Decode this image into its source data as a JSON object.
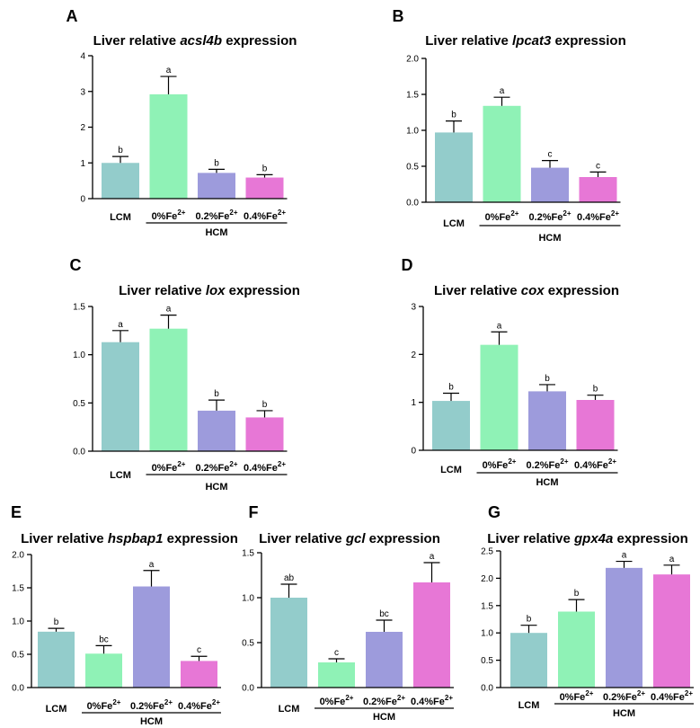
{
  "figure": {
    "colors": [
      "#93cccb",
      "#8ff2b6",
      "#9d9bdc",
      "#e777d6"
    ],
    "group_label": "HCM",
    "iron_prefixes": [
      "0%Fe",
      "0.2%Fe",
      "0.4%Fe"
    ],
    "iron_sup": "2+"
  },
  "chart_data": [
    {
      "type": "bar",
      "panel": "A",
      "title_prefix": "Liver relative ",
      "gene": "acsl4b",
      "title_suffix": " expression",
      "categories": [
        "LCM",
        "0%Fe2+",
        "0.2%Fe2+",
        "0.4%Fe2+"
      ],
      "values": [
        1.0,
        2.92,
        0.72,
        0.59
      ],
      "errors": [
        0.18,
        0.5,
        0.1,
        0.08
      ],
      "letters": [
        "b",
        "a",
        "b",
        "b"
      ],
      "ylim": [
        0,
        4
      ],
      "yticks": [
        0,
        1,
        2,
        3,
        4
      ],
      "ytick_labels": [
        "0",
        "1",
        "2",
        "3",
        "4"
      ]
    },
    {
      "type": "bar",
      "panel": "B",
      "title_prefix": "Liver relative ",
      "gene": "lpcat3",
      "title_suffix": " expression",
      "categories": [
        "LCM",
        "0%Fe2+",
        "0.2%Fe2+",
        "0.4%Fe2+"
      ],
      "values": [
        0.97,
        1.34,
        0.48,
        0.35
      ],
      "errors": [
        0.16,
        0.12,
        0.1,
        0.07
      ],
      "letters": [
        "b",
        "a",
        "c",
        "c"
      ],
      "ylim": [
        0,
        2
      ],
      "yticks": [
        0,
        0.5,
        1,
        1.5,
        2
      ],
      "ytick_labels": [
        "0.0",
        "0.5",
        "1.0",
        "1.5",
        "2.0"
      ]
    },
    {
      "type": "bar",
      "panel": "C",
      "title_prefix": "Liver relative ",
      "gene": "lox",
      "title_suffix": " expression",
      "categories": [
        "LCM",
        "0%Fe2+",
        "0.2%Fe2+",
        "0.4%Fe2+"
      ],
      "values": [
        1.13,
        1.27,
        0.42,
        0.35
      ],
      "errors": [
        0.12,
        0.14,
        0.11,
        0.07
      ],
      "letters": [
        "a",
        "a",
        "b",
        "b"
      ],
      "ylim": [
        0,
        1.5
      ],
      "yticks": [
        0,
        0.5,
        1,
        1.5
      ],
      "ytick_labels": [
        "0.0",
        "0.5",
        "1.0",
        "1.5"
      ]
    },
    {
      "type": "bar",
      "panel": "D",
      "title_prefix": "Liver relative ",
      "gene": "cox",
      "title_suffix": " expression",
      "categories": [
        "LCM",
        "0%Fe2+",
        "0.2%Fe2+",
        "0.4%Fe2+"
      ],
      "values": [
        1.03,
        2.2,
        1.23,
        1.05
      ],
      "errors": [
        0.16,
        0.27,
        0.14,
        0.1
      ],
      "letters": [
        "b",
        "a",
        "b",
        "b"
      ],
      "ylim": [
        0,
        3
      ],
      "yticks": [
        0,
        1,
        2,
        3
      ],
      "ytick_labels": [
        "0",
        "1",
        "2",
        "3"
      ]
    },
    {
      "type": "bar",
      "panel": "E",
      "title_prefix": "Liver relative ",
      "gene": "hspbap1",
      "title_suffix": " expression",
      "categories": [
        "LCM",
        "0%Fe2+",
        "0.2%Fe2+",
        "0.4%Fe2+"
      ],
      "values": [
        0.84,
        0.51,
        1.52,
        0.4
      ],
      "errors": [
        0.05,
        0.12,
        0.24,
        0.07
      ],
      "letters": [
        "b",
        "bc",
        "a",
        "c"
      ],
      "ylim": [
        0,
        2
      ],
      "yticks": [
        0,
        0.5,
        1,
        1.5,
        2
      ],
      "ytick_labels": [
        "0.0",
        "0.5",
        "1.0",
        "1.5",
        "2.0"
      ]
    },
    {
      "type": "bar",
      "panel": "F",
      "title_prefix": "Liver relative ",
      "gene": "gcl",
      "title_suffix": " expression",
      "categories": [
        "LCM",
        "0%Fe2+",
        "0.2%Fe2+",
        "0.4%Fe2+"
      ],
      "values": [
        1.0,
        0.28,
        0.62,
        1.17
      ],
      "errors": [
        0.15,
        0.04,
        0.13,
        0.22
      ],
      "letters": [
        "ab",
        "c",
        "bc",
        "a"
      ],
      "ylim": [
        0,
        1.5
      ],
      "yticks": [
        0,
        0.5,
        1,
        1.5
      ],
      "ytick_labels": [
        "0.0",
        "0.5",
        "1.0",
        "1.5"
      ]
    },
    {
      "type": "bar",
      "panel": "G",
      "title_prefix": "Liver relative ",
      "gene": "gpx4a",
      "title_suffix": " expression",
      "categories": [
        "LCM",
        "0%Fe2+",
        "0.2%Fe2+",
        "0.4%Fe2+"
      ],
      "values": [
        1.0,
        1.39,
        2.19,
        2.07
      ],
      "errors": [
        0.14,
        0.22,
        0.12,
        0.17
      ],
      "letters": [
        "b",
        "b",
        "a",
        "a"
      ],
      "ylim": [
        0,
        2.5
      ],
      "yticks": [
        0,
        0.5,
        1,
        1.5,
        2,
        2.5
      ],
      "ytick_labels": [
        "0.0",
        "0.5",
        "1.0",
        "1.5",
        "2.0",
        "2.5"
      ]
    }
  ]
}
